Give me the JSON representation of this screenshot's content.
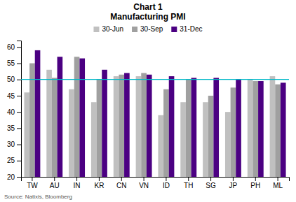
{
  "chart_data": {
    "type": "bar",
    "title": "Chart 1",
    "subtitle": "Manufacturing PMI",
    "categories": [
      "TW",
      "AU",
      "IN",
      "KR",
      "CN",
      "VN",
      "ID",
      "TH",
      "SG",
      "JP",
      "PH",
      "ML"
    ],
    "series": [
      {
        "name": "30-Jun",
        "color": "#c0c0c0",
        "values": [
          46,
          53,
          47,
          43,
          51,
          51,
          39,
          43,
          43,
          40,
          50,
          51
        ]
      },
      {
        "name": "30-Sep",
        "color": "#a0a0a0",
        "values": [
          55,
          50.5,
          57,
          50,
          51.5,
          52,
          47,
          50,
          45,
          47.5,
          49.5,
          48.5
        ]
      },
      {
        "name": "31-Dec",
        "color": "#4b0082",
        "values": [
          59,
          57,
          56.5,
          53,
          52,
          51.5,
          51,
          50.5,
          50.5,
          50,
          49.5,
          49
        ]
      }
    ],
    "reference_line": {
      "value": 50,
      "color": "#00b8c8"
    },
    "ylim": [
      20,
      62
    ],
    "yticks": [
      20,
      25,
      30,
      35,
      40,
      45,
      50,
      55,
      60
    ],
    "grid": false,
    "legend": "top",
    "annotations": [
      "Source: Natixis, Bloomberg"
    ]
  }
}
